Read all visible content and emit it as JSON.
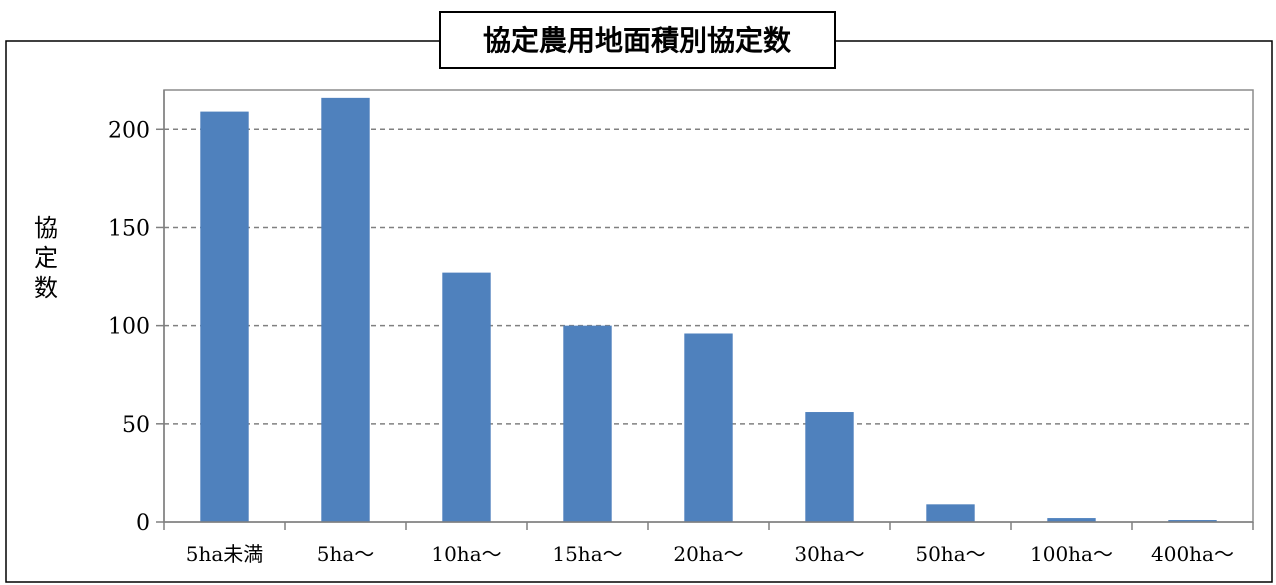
{
  "chart_data": {
    "type": "bar",
    "title": "協定農用地面積別協定数",
    "ylabel": "協定数",
    "xlabel": "",
    "categories": [
      "5ha未満",
      "5ha～",
      "10ha～",
      "15ha～",
      "20ha～",
      "30ha～",
      "50ha～",
      "100ha～",
      "400ha～"
    ],
    "values": [
      209,
      216,
      127,
      100,
      96,
      56,
      9,
      2,
      1
    ],
    "ylim": [
      0,
      220
    ],
    "yticks": [
      0,
      50,
      100,
      150,
      200
    ],
    "grid": true,
    "legend": "none",
    "bar_color": "#4F81BD"
  }
}
